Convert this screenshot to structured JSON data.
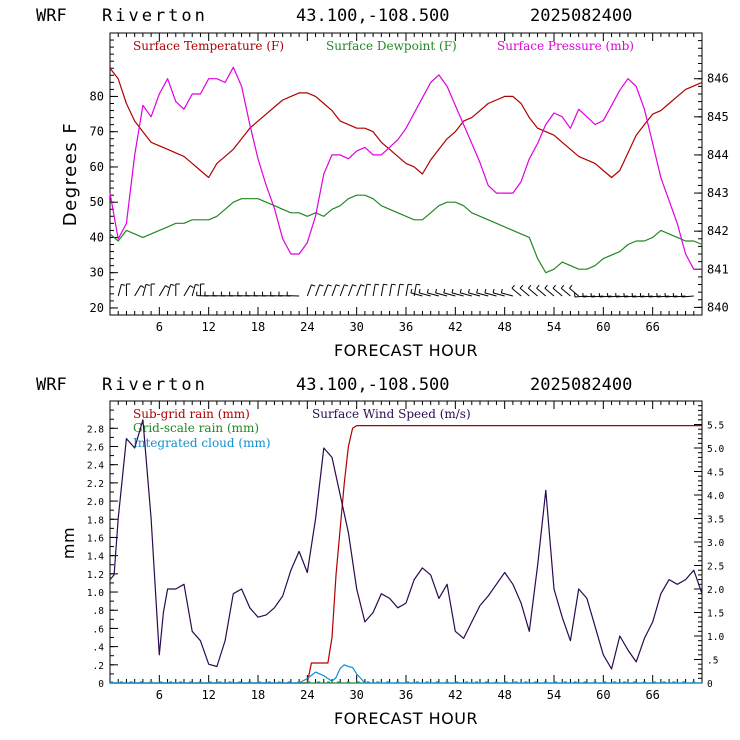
{
  "panels": [
    {
      "header": {
        "model": "WRF",
        "station": "Riverton",
        "coords": "43.100,-108.500",
        "init": "2025082400"
      }
    },
    {
      "header": {
        "model": "WRF",
        "station": "Riverton",
        "coords": "43.100,-108.500",
        "init": "2025082400"
      }
    }
  ],
  "colors": {
    "temp": "#b00000",
    "dewpoint": "#228822",
    "pressure": "#e000e0",
    "subgrid": "#b00000",
    "gridscale": "#228822",
    "cloud": "#1090d0",
    "wind": "#2a0a50",
    "axis": "#000000"
  },
  "chart_data": [
    {
      "type": "line",
      "xlabel": "FORECAST HOUR",
      "ylabel": "Degrees F",
      "xlim": [
        0,
        72
      ],
      "xticks": [
        "6",
        "12",
        "18",
        "24",
        "30",
        "36",
        "42",
        "48",
        "54",
        "60",
        "66"
      ],
      "ylim": [
        18,
        98
      ],
      "yticks": [
        "20",
        "30",
        "40",
        "50",
        "60",
        "70",
        "80"
      ],
      "y2lim": [
        839.8,
        847.2
      ],
      "y2ticks": [
        "840",
        "841",
        "842",
        "843",
        "844",
        "845",
        "846"
      ],
      "legend": [
        "Surface Temperature (F)",
        "Surface Dewpoint (F)",
        "Surface Pressure (mb)"
      ],
      "series": [
        {
          "name": "Surface Temperature (F)",
          "axis": "left",
          "x": [
            0,
            1,
            2,
            3,
            4,
            5,
            6,
            7,
            8,
            9,
            10,
            11,
            12,
            13,
            14,
            15,
            16,
            17,
            18,
            19,
            20,
            21,
            22,
            23,
            24,
            25,
            26,
            27,
            28,
            29,
            30,
            31,
            32,
            33,
            34,
            35,
            36,
            37,
            38,
            39,
            40,
            41,
            42,
            43,
            44,
            45,
            46,
            47,
            48,
            49,
            50,
            51,
            52,
            53,
            54,
            55,
            56,
            57,
            58,
            59,
            60,
            61,
            62,
            63,
            64,
            65,
            66,
            67,
            68,
            69,
            70,
            71,
            72
          ],
          "y": [
            88,
            85,
            78,
            73,
            70,
            67,
            66,
            65,
            64,
            63,
            61,
            59,
            57,
            61,
            63,
            65,
            68,
            71,
            73,
            75,
            77,
            79,
            80,
            81,
            81,
            80,
            78,
            76,
            73,
            72,
            71,
            71,
            70,
            67,
            65,
            63,
            61,
            60,
            58,
            62,
            65,
            68,
            70,
            73,
            74,
            76,
            78,
            79,
            80,
            80,
            78,
            74,
            71,
            70,
            69,
            67,
            65,
            63,
            62,
            61,
            59,
            57,
            59,
            64,
            69,
            72,
            75,
            76,
            78,
            80,
            82,
            83,
            84
          ]
        },
        {
          "name": "Surface Dewpoint (F)",
          "axis": "left",
          "x": [
            0,
            1,
            2,
            3,
            4,
            5,
            6,
            7,
            8,
            9,
            10,
            11,
            12,
            13,
            14,
            15,
            16,
            17,
            18,
            19,
            20,
            21,
            22,
            23,
            24,
            25,
            26,
            27,
            28,
            29,
            30,
            31,
            32,
            33,
            34,
            35,
            36,
            37,
            38,
            39,
            40,
            41,
            42,
            43,
            44,
            45,
            46,
            47,
            48,
            49,
            50,
            51,
            52,
            53,
            54,
            55,
            56,
            57,
            58,
            59,
            60,
            61,
            62,
            63,
            64,
            65,
            66,
            67,
            68,
            69,
            70,
            71,
            72
          ],
          "y": [
            41,
            39,
            42,
            41,
            40,
            41,
            42,
            43,
            44,
            44,
            45,
            45,
            45,
            46,
            48,
            50,
            51,
            51,
            51,
            50,
            49,
            48,
            47,
            47,
            46,
            47,
            46,
            48,
            49,
            51,
            52,
            52,
            51,
            49,
            48,
            47,
            46,
            45,
            45,
            47,
            49,
            50,
            50,
            49,
            47,
            46,
            45,
            44,
            43,
            42,
            41,
            40,
            34,
            30,
            31,
            33,
            32,
            31,
            31,
            32,
            34,
            35,
            36,
            38,
            39,
            39,
            40,
            42,
            41,
            40,
            39,
            39,
            38
          ]
        },
        {
          "name": "Surface Pressure (mb)",
          "axis": "right",
          "x": [
            0,
            1,
            2,
            3,
            4,
            5,
            6,
            7,
            8,
            9,
            10,
            11,
            12,
            13,
            14,
            15,
            16,
            17,
            18,
            19,
            20,
            21,
            22,
            23,
            24,
            25,
            26,
            27,
            28,
            29,
            30,
            31,
            32,
            33,
            34,
            35,
            36,
            37,
            38,
            39,
            40,
            41,
            42,
            43,
            44,
            45,
            46,
            47,
            48,
            49,
            50,
            51,
            52,
            53,
            54,
            55,
            56,
            57,
            58,
            59,
            60,
            61,
            62,
            63,
            64,
            65,
            66,
            67,
            68,
            69,
            70,
            71,
            72
          ],
          "y": [
            843,
            841.8,
            842.2,
            844.0,
            845.3,
            845.0,
            845.6,
            846.0,
            845.4,
            845.2,
            845.6,
            845.6,
            846.0,
            846.0,
            845.9,
            846.3,
            845.8,
            844.8,
            843.9,
            843.2,
            842.6,
            841.8,
            841.4,
            841.4,
            841.7,
            842.4,
            843.5,
            844.0,
            844.0,
            843.9,
            844.1,
            844.2,
            844.0,
            844.0,
            844.2,
            844.4,
            844.7,
            845.1,
            845.5,
            845.9,
            846.1,
            845.8,
            845.3,
            844.8,
            844.3,
            843.8,
            843.2,
            843.0,
            843.0,
            843.0,
            843.3,
            843.9,
            844.3,
            844.8,
            845.1,
            845.0,
            844.7,
            845.2,
            845.0,
            844.8,
            844.9,
            845.3,
            845.7,
            846.0,
            845.8,
            845.2,
            844.3,
            843.4,
            842.8,
            842.2,
            841.4,
            841.0,
            841.0
          ]
        }
      ],
      "wind_barbs_present": true
    },
    {
      "type": "line",
      "xlabel": "FORECAST HOUR",
      "ylabel": "mm",
      "xlim": [
        0,
        72
      ],
      "xticks": [
        "6",
        "12",
        "18",
        "24",
        "30",
        "36",
        "42",
        "48",
        "54",
        "60",
        "66"
      ],
      "ylim": [
        0,
        3.1
      ],
      "yticks": [
        "0",
        ".2",
        ".4",
        ".6",
        ".8",
        "1.0",
        "1.2",
        "1.4",
        "1.6",
        "1.8",
        "2.0",
        "2.2",
        "2.4",
        "2.6",
        "2.8"
      ],
      "y2lim": [
        0,
        6.0
      ],
      "y2ticks": [
        "0",
        ".5",
        "1.0",
        "1.5",
        "2.0",
        "2.5",
        "3.0",
        "3.5",
        "4.0",
        "4.5",
        "5.0",
        "5.5"
      ],
      "legend": [
        "Sub-grid rain (mm)",
        "Grid-scale rain (mm)",
        "Integrated cloud (mm)",
        "Surface Wind Speed (m/s)"
      ],
      "series": [
        {
          "name": "Sub-grid rain (mm)",
          "axis": "left",
          "x": [
            0,
            24,
            24.5,
            26.5,
            27,
            27.5,
            28,
            28.5,
            29,
            29.5,
            30,
            72
          ],
          "y": [
            0,
            0,
            0.22,
            0.22,
            0.5,
            1.2,
            1.7,
            2.2,
            2.6,
            2.8,
            2.83,
            2.83
          ]
        },
        {
          "name": "Grid-scale rain (mm)",
          "axis": "left",
          "x": [
            0,
            72
          ],
          "y": [
            0,
            0
          ]
        },
        {
          "name": "Integrated cloud (mm)",
          "axis": "left",
          "x": [
            0,
            23,
            24,
            25,
            26,
            27,
            27.5,
            28,
            28.5,
            29,
            29.5,
            30,
            31,
            72
          ],
          "y": [
            0,
            0,
            0.05,
            0.12,
            0.08,
            0.02,
            0.06,
            0.16,
            0.2,
            0.18,
            0.17,
            0.1,
            0,
            0
          ]
        },
        {
          "name": "Surface Wind Speed (m/s)",
          "axis": "right",
          "x": [
            0,
            0.5,
            1,
            2,
            3,
            4,
            5,
            6,
            6.5,
            7,
            8,
            9,
            10,
            11,
            12,
            13,
            14,
            15,
            16,
            17,
            18,
            19,
            20,
            21,
            22,
            23,
            24,
            25,
            26,
            27,
            28,
            29,
            30,
            31,
            32,
            33,
            34,
            35,
            36,
            37,
            38,
            39,
            40,
            41,
            42,
            43,
            44,
            45,
            46,
            47,
            48,
            49,
            50,
            51,
            52,
            53,
            54,
            55,
            56,
            57,
            58,
            59,
            60,
            61,
            62,
            63,
            64,
            65,
            66,
            67,
            68,
            69,
            70,
            71,
            72
          ],
          "y": [
            2.2,
            2.3,
            3.5,
            5.2,
            5.0,
            5.6,
            3.5,
            0.6,
            1.5,
            2.0,
            2.0,
            2.1,
            1.1,
            0.9,
            0.4,
            0.35,
            0.9,
            1.9,
            2.0,
            1.6,
            1.4,
            1.45,
            1.6,
            1.85,
            2.4,
            2.8,
            2.35,
            3.5,
            5.0,
            4.8,
            4.0,
            3.2,
            2.0,
            1.3,
            1.5,
            1.9,
            1.8,
            1.6,
            1.7,
            2.2,
            2.45,
            2.3,
            1.8,
            2.1,
            1.1,
            0.95,
            1.3,
            1.65,
            1.85,
            2.1,
            2.35,
            2.1,
            1.7,
            1.1,
            2.5,
            4.1,
            2.0,
            1.4,
            0.9,
            2.0,
            1.8,
            1.2,
            0.6,
            0.3,
            1.0,
            0.7,
            0.45,
            0.95,
            1.3,
            1.9,
            2.2,
            2.1,
            2.2,
            2.4,
            1.9
          ]
        }
      ]
    }
  ]
}
